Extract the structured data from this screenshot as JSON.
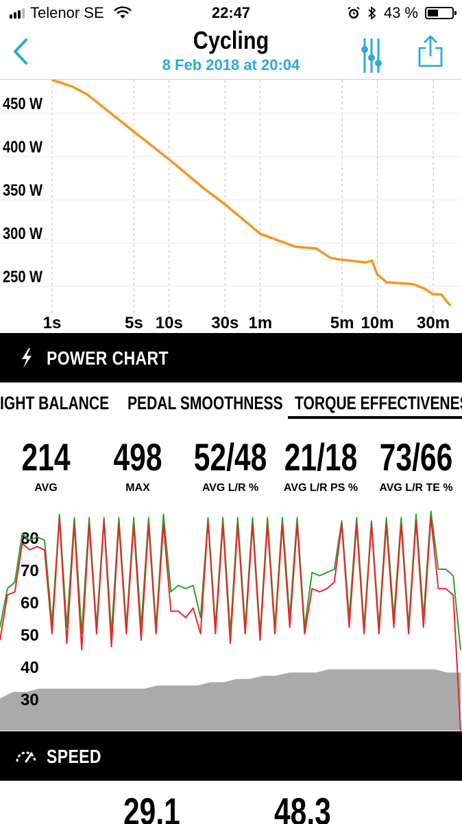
{
  "status_bar": {
    "carrier": "Telenor SE",
    "time": "22:47",
    "battery": "43 %",
    "battery_level": 0.43
  },
  "nav": {
    "title": "Cycling",
    "subtitle": "8 Feb 2018 at 20:04",
    "accent_color": "#29a9e1",
    "icons": [
      "back-chevron-icon",
      "filter-sliders-icon",
      "share-icon"
    ]
  },
  "power_chart": {
    "label": "POWER CHART",
    "icon": "lightning-icon"
  },
  "tabs": [
    {
      "label": "IGHT BALANCE"
    },
    {
      "label": "PEDAL SMOOTHNESS"
    },
    {
      "label": "TORQUE EFFECTIVENESS",
      "selected": true
    }
  ],
  "stats": [
    {
      "value": "214",
      "label": "AVG"
    },
    {
      "value": "498",
      "label": "MAX"
    },
    {
      "value": "52/48",
      "label": "AVG L/R %"
    },
    {
      "value": "21/18",
      "label": "AVG L/R PS %"
    },
    {
      "value": "73/66",
      "label": "AVG L/R TE %"
    }
  ],
  "speed": {
    "label": "SPEED",
    "icon": "speedometer-icon",
    "values": [
      "29.1",
      "48.3"
    ]
  },
  "chart_data": [
    {
      "type": "line",
      "x_scale": "log",
      "x_unit": "seconds",
      "x_ticks": [
        {
          "x": 1,
          "label": "1s"
        },
        {
          "x": 5,
          "label": "5s"
        },
        {
          "x": 10,
          "label": "10s"
        },
        {
          "x": 30,
          "label": "30s"
        },
        {
          "x": 60,
          "label": "1m"
        },
        {
          "x": 300,
          "label": "5m"
        },
        {
          "x": 600,
          "label": "10m"
        },
        {
          "x": 1800,
          "label": "30m"
        }
      ],
      "y_ticks": [
        {
          "y": 250,
          "label": "250 W"
        },
        {
          "y": 300,
          "label": "300 W"
        },
        {
          "y": 350,
          "label": "350 W"
        },
        {
          "y": 400,
          "label": "400 W"
        },
        {
          "y": 450,
          "label": "450 W"
        }
      ],
      "ylim": [
        215,
        475
      ],
      "color": "#f7941d",
      "series": [
        {
          "x": [
            1,
            1.5,
            2,
            5,
            10,
            20,
            30,
            60,
            120,
            180,
            240,
            300,
            480,
            540,
            600,
            720,
            1200,
            1500,
            1800,
            2100,
            2520
          ],
          "y": [
            476,
            468,
            459,
            416,
            384,
            350,
            332,
            298,
            283,
            281,
            270,
            268,
            265,
            267,
            251,
            242,
            240,
            235,
            228,
            228,
            215
          ]
        }
      ]
    },
    {
      "type": "line",
      "y_ticks": [
        {
          "y": 30,
          "label": "30"
        },
        {
          "y": 40,
          "label": "40"
        },
        {
          "y": 50,
          "label": "50"
        },
        {
          "y": 60,
          "label": "60"
        },
        {
          "y": 70,
          "label": "70"
        },
        {
          "y": 80,
          "label": "80"
        }
      ],
      "ylim": [
        20,
        87
      ],
      "series": [
        {
          "color": "#2ca02c",
          "values": [
            52,
            64,
            66,
            81,
            79,
            80,
            79,
            53,
            87,
            52,
            86,
            50,
            86,
            52,
            86,
            50,
            86,
            52,
            86,
            52,
            86,
            52,
            87,
            63,
            65,
            64,
            65,
            55,
            86,
            52,
            86,
            50,
            86,
            52,
            86,
            50,
            86,
            52,
            86,
            55,
            86,
            52,
            69,
            68,
            69,
            70,
            85,
            55,
            86,
            52,
            85,
            52,
            86,
            55,
            86,
            52,
            87,
            55,
            88,
            70,
            70,
            68,
            45
          ]
        },
        {
          "color": "#e8262a",
          "values": [
            48,
            62,
            63,
            78,
            76,
            77,
            76,
            50,
            86,
            47,
            84,
            45,
            84,
            50,
            85,
            46,
            84,
            50,
            84,
            48,
            84,
            50,
            84,
            57,
            57,
            55,
            58,
            50,
            85,
            50,
            84,
            47,
            84,
            50,
            84,
            48,
            84,
            50,
            84,
            52,
            84,
            50,
            64,
            63,
            64,
            66,
            84,
            52,
            84,
            50,
            84,
            50,
            84,
            52,
            84,
            50,
            85,
            52,
            86,
            64,
            64,
            62,
            20
          ]
        },
        {
          "color": "#aaaaaa",
          "type": "area",
          "values": [
            30,
            32,
            32,
            33,
            33,
            33,
            33,
            33,
            33,
            33,
            33,
            33,
            34,
            34,
            34,
            34,
            35,
            35,
            36,
            36,
            37,
            37,
            38,
            38,
            38,
            39,
            39,
            39,
            39,
            39,
            39,
            39,
            39,
            39,
            38,
            38
          ]
        }
      ]
    }
  ]
}
